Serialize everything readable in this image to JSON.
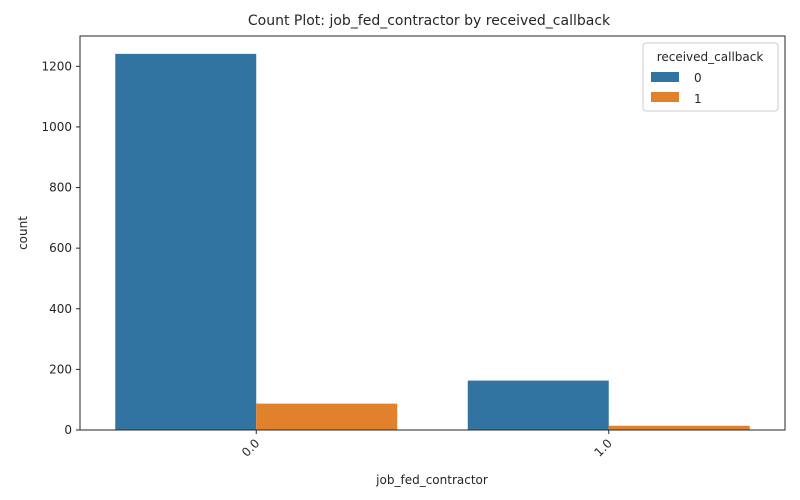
{
  "chart_data": {
    "type": "bar",
    "title": "Count Plot: job_fed_contractor by received_callback",
    "xlabel": "job_fed_contractor",
    "ylabel": "count",
    "categories": [
      "0.0",
      "1.0"
    ],
    "series": [
      {
        "name": "0",
        "values": [
          1241,
          163
        ],
        "color": "#3274a1"
      },
      {
        "name": "1",
        "values": [
          87,
          14
        ],
        "color": "#e1812c"
      }
    ],
    "ylim": [
      0,
      1300
    ],
    "yticks": [
      0,
      200,
      400,
      600,
      800,
      1000,
      1200
    ],
    "legend": {
      "title": "received_callback",
      "placement": "top-right"
    },
    "grid": false
  }
}
